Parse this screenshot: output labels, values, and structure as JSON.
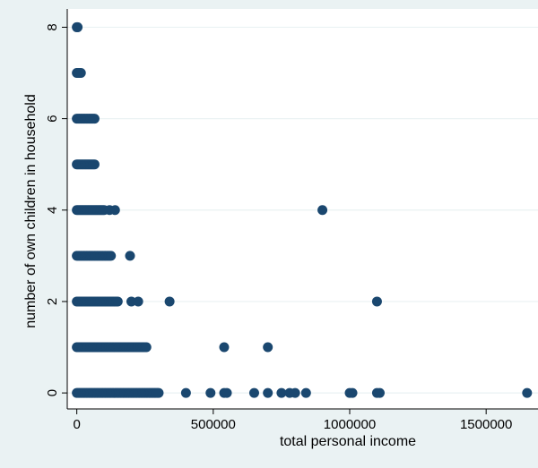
{
  "chart_data": {
    "type": "scatter",
    "title": "",
    "xlabel": "total personal income",
    "ylabel": "number of own children in household",
    "xlim": [
      -35000,
      1690000
    ],
    "ylim": [
      -0.35,
      8.4
    ],
    "x_ticks": [
      0,
      500000,
      1000000,
      1500000
    ],
    "x_tick_labels": [
      "0",
      "500000",
      "1000000",
      "1500000"
    ],
    "y_ticks": [
      0,
      2,
      4,
      6,
      8
    ],
    "y_tick_labels": [
      "0",
      "2",
      "4",
      "6",
      "8"
    ],
    "grid": "horizontal",
    "legend": "none",
    "colors": {
      "background": "#eaf2f3",
      "plot_area": "#ffffff",
      "grid": "#eaf2f3",
      "marker": "#1a476f"
    },
    "series": [
      {
        "x": [
          0,
          5000,
          10000,
          15000,
          20000,
          25000,
          30000,
          35000,
          40000,
          45000,
          50000,
          55000,
          60000,
          65000,
          70000,
          75000,
          80000,
          85000,
          90000,
          95000,
          100000,
          105000,
          110000,
          115000,
          120000,
          125000,
          130000,
          135000,
          140000,
          145000,
          150000,
          155000,
          160000,
          165000,
          170000,
          175000,
          180000,
          185000,
          190000,
          195000,
          200000,
          205000,
          210000,
          215000,
          220000,
          225000,
          230000,
          235000,
          240000,
          245000,
          250000,
          255000,
          260000,
          265000,
          270000,
          275000,
          280000,
          285000,
          290000,
          295000,
          300000,
          400000,
          490000,
          540000,
          550000,
          650000,
          700000,
          750000,
          780000,
          800000,
          840000,
          1000000,
          1010000,
          1100000,
          1110000,
          1650000,
          0,
          5000,
          10000,
          15000,
          20000,
          25000,
          30000,
          35000,
          40000,
          45000,
          50000,
          55000,
          60000,
          65000,
          70000,
          75000,
          80000,
          85000,
          90000,
          95000,
          100000,
          105000,
          110000,
          115000,
          120000,
          125000,
          130000,
          135000,
          140000,
          145000,
          150000,
          155000,
          160000,
          165000,
          170000,
          175000,
          180000,
          185000,
          190000,
          195000,
          200000,
          205000,
          210000,
          215000,
          220000,
          225000,
          230000,
          235000,
          240000,
          245000,
          250000,
          255000,
          540000,
          700000,
          0,
          5000,
          10000,
          15000,
          20000,
          25000,
          30000,
          35000,
          40000,
          45000,
          50000,
          55000,
          60000,
          65000,
          70000,
          75000,
          80000,
          85000,
          90000,
          95000,
          100000,
          105000,
          110000,
          115000,
          120000,
          125000,
          130000,
          135000,
          140000,
          145000,
          150000,
          200000,
          225000,
          340000,
          1100000,
          0,
          5000,
          10000,
          15000,
          20000,
          25000,
          30000,
          35000,
          40000,
          45000,
          50000,
          55000,
          60000,
          65000,
          70000,
          75000,
          80000,
          85000,
          90000,
          95000,
          100000,
          105000,
          110000,
          115000,
          120000,
          125000,
          195000,
          0,
          5000,
          10000,
          15000,
          20000,
          25000,
          30000,
          35000,
          40000,
          45000,
          50000,
          55000,
          60000,
          65000,
          70000,
          75000,
          80000,
          85000,
          90000,
          95000,
          100000,
          120000,
          140000,
          900000,
          0,
          5000,
          10000,
          15000,
          20000,
          25000,
          30000,
          35000,
          40000,
          45000,
          50000,
          55000,
          60000,
          65000,
          0,
          5000,
          10000,
          15000,
          20000,
          25000,
          30000,
          35000,
          40000,
          45000,
          50000,
          55000,
          60000,
          65000,
          0,
          5000,
          10000,
          15000,
          0,
          3000
        ],
        "y": [
          0,
          0,
          0,
          0,
          0,
          0,
          0,
          0,
          0,
          0,
          0,
          0,
          0,
          0,
          0,
          0,
          0,
          0,
          0,
          0,
          0,
          0,
          0,
          0,
          0,
          0,
          0,
          0,
          0,
          0,
          0,
          0,
          0,
          0,
          0,
          0,
          0,
          0,
          0,
          0,
          0,
          0,
          0,
          0,
          0,
          0,
          0,
          0,
          0,
          0,
          0,
          0,
          0,
          0,
          0,
          0,
          0,
          0,
          0,
          0,
          0,
          0,
          0,
          0,
          0,
          0,
          0,
          0,
          0,
          0,
          0,
          0,
          0,
          0,
          0,
          0,
          1,
          1,
          1,
          1,
          1,
          1,
          1,
          1,
          1,
          1,
          1,
          1,
          1,
          1,
          1,
          1,
          1,
          1,
          1,
          1,
          1,
          1,
          1,
          1,
          1,
          1,
          1,
          1,
          1,
          1,
          1,
          1,
          1,
          1,
          1,
          1,
          1,
          1,
          1,
          1,
          1,
          1,
          1,
          1,
          1,
          1,
          1,
          1,
          1,
          1,
          1,
          1,
          1,
          1,
          2,
          2,
          2,
          2,
          2,
          2,
          2,
          2,
          2,
          2,
          2,
          2,
          2,
          2,
          2,
          2,
          2,
          2,
          2,
          2,
          2,
          2,
          2,
          2,
          2,
          2,
          2,
          2,
          2,
          2,
          2,
          2,
          2,
          2,
          2,
          3,
          3,
          3,
          3,
          3,
          3,
          3,
          3,
          3,
          3,
          3,
          3,
          3,
          3,
          3,
          3,
          3,
          3,
          3,
          3,
          3,
          3,
          3,
          3,
          3,
          3,
          3,
          4,
          4,
          4,
          4,
          4,
          4,
          4,
          4,
          4,
          4,
          4,
          4,
          4,
          4,
          4,
          4,
          4,
          4,
          4,
          4,
          4,
          4,
          4,
          4,
          5,
          5,
          5,
          5,
          5,
          5,
          5,
          5,
          5,
          5,
          5,
          5,
          5,
          5,
          6,
          6,
          6,
          6,
          6,
          6,
          6,
          6,
          6,
          6,
          6,
          6,
          6,
          6,
          7,
          7,
          7,
          7,
          8,
          8
        ]
      }
    ]
  }
}
